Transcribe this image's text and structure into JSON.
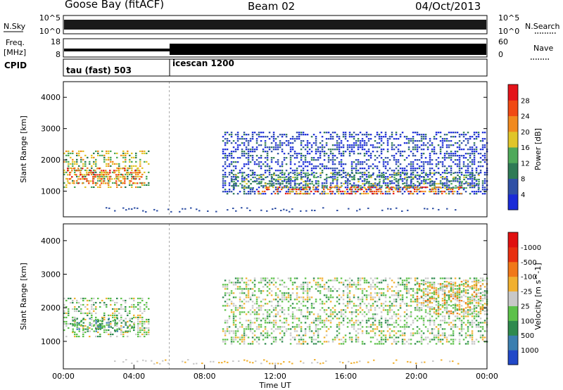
{
  "header": {
    "station": "Goose Bay (fitACF)",
    "beam": "Beam 02",
    "date": "04/Oct/2013"
  },
  "sky_panel": {
    "left_label": "N.Sky",
    "right_label": "N.Search",
    "left_ticks": [
      "10^5",
      "10^0"
    ],
    "right_ticks": [
      "10^5",
      "10^0"
    ]
  },
  "freq_panel": {
    "left_label_line1": "Freq.",
    "left_label_line2": "[MHz]",
    "right_label": "Nave",
    "left_ticks": [
      "18",
      "8"
    ],
    "right_ticks": [
      "60",
      "0"
    ]
  },
  "cpid_panel": {
    "label": "CPID",
    "modes": [
      "tau (fast) 503",
      "icescan 1200"
    ]
  },
  "x_axis": {
    "label": "Time UT",
    "ticks": [
      "00:00",
      "04:00",
      "08:00",
      "12:00",
      "16:00",
      "20:00",
      "00:00"
    ]
  },
  "chart_data": [
    {
      "type": "heatmap",
      "title": "",
      "xlabel": "Time UT",
      "ylabel": "Slant Range [km]",
      "x_range_hours": [
        0,
        24
      ],
      "ylim": [
        180,
        4500
      ],
      "y_ticks": [
        1000,
        2000,
        3000,
        4000
      ],
      "colorbar_label": "Power [dB]",
      "colorbar_ticks": [
        "4",
        "8",
        "12",
        "16",
        "20",
        "24",
        "28"
      ],
      "colorbar_colors": [
        "#1a2bd8",
        "#2f50a5",
        "#2e7a55",
        "#4fa95a",
        "#e0c52a",
        "#f08a1f",
        "#f04a14",
        "#e4141a"
      ],
      "echo_regions": [
        {
          "t0": 0.0,
          "t1": 4.8,
          "r0": 1150,
          "r1": 2300,
          "color_index": 4
        },
        {
          "t0": 0.2,
          "t1": 4.5,
          "r0": 1250,
          "r1": 1750,
          "color_index": 6
        },
        {
          "t0": 9.0,
          "t1": 24.0,
          "r0": 900,
          "r1": 2900,
          "color_index": 1
        },
        {
          "t0": 9.5,
          "t1": 23.5,
          "r0": 1100,
          "r1": 1600,
          "color_index": 3
        },
        {
          "t0": 11.0,
          "t1": 22.5,
          "r0": 900,
          "r1": 1150,
          "color_index": 6
        }
      ]
    },
    {
      "type": "heatmap",
      "title": "",
      "xlabel": "Time UT",
      "ylabel": "Slant Range [km]",
      "x_range_hours": [
        0,
        24
      ],
      "ylim": [
        180,
        4500
      ],
      "y_ticks": [
        1000,
        2000,
        3000,
        4000
      ],
      "colorbar_label": "Velocity [m s^-1]",
      "colorbar_ticks": [
        "1000",
        "500",
        "100",
        "25",
        "-25",
        "-100",
        "-500",
        "-1000"
      ],
      "colorbar_colors": [
        "#2148c8",
        "#3b7fb0",
        "#2e8a4e",
        "#5cc14a",
        "#c8c8c8",
        "#f0b030",
        "#f07818",
        "#e83010",
        "#e01010"
      ],
      "echo_regions": [
        {
          "t0": 0.0,
          "t1": 4.8,
          "r0": 1150,
          "r1": 2300,
          "color_index": 4
        },
        {
          "t0": 0.5,
          "t1": 4.0,
          "r0": 1300,
          "r1": 1700,
          "color_index": 3
        },
        {
          "t0": 9.0,
          "t1": 24.0,
          "r0": 900,
          "r1": 2900,
          "color_index": 4
        },
        {
          "t0": 20.0,
          "t1": 24.0,
          "r0": 1800,
          "r1": 2800,
          "color_index": 5
        }
      ]
    }
  ]
}
